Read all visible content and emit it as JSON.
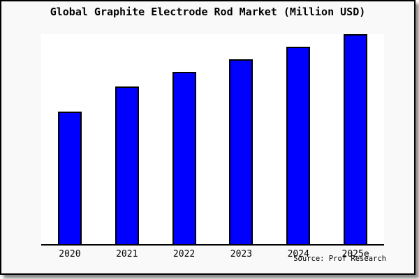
{
  "frame": {
    "title": "Global Graphite Electrode Rod Market (Million USD)",
    "source": "Source: Prof Research"
  },
  "chart_data": {
    "type": "bar",
    "title": "Global Graphite Electrode Rod Market (Million USD)",
    "categories": [
      "2020",
      "2021",
      "2022",
      "2023",
      "2024",
      "2025e"
    ],
    "values": [
      63,
      75,
      82,
      88,
      94,
      100
    ],
    "value_scale": "relative estimate from bar heights; no numeric axis shown, tallest bar = 100",
    "xlabel": "",
    "ylabel": "",
    "ylim": [
      0,
      100
    ],
    "grid": false,
    "legend": false,
    "source_note": "Source: Prof Research"
  },
  "colors": {
    "figure_bg": "#f9f9f9",
    "plot_bg": "#ffffff",
    "bar_fill": "#0000ff",
    "bar_border": "#000000",
    "text": "#000000"
  }
}
